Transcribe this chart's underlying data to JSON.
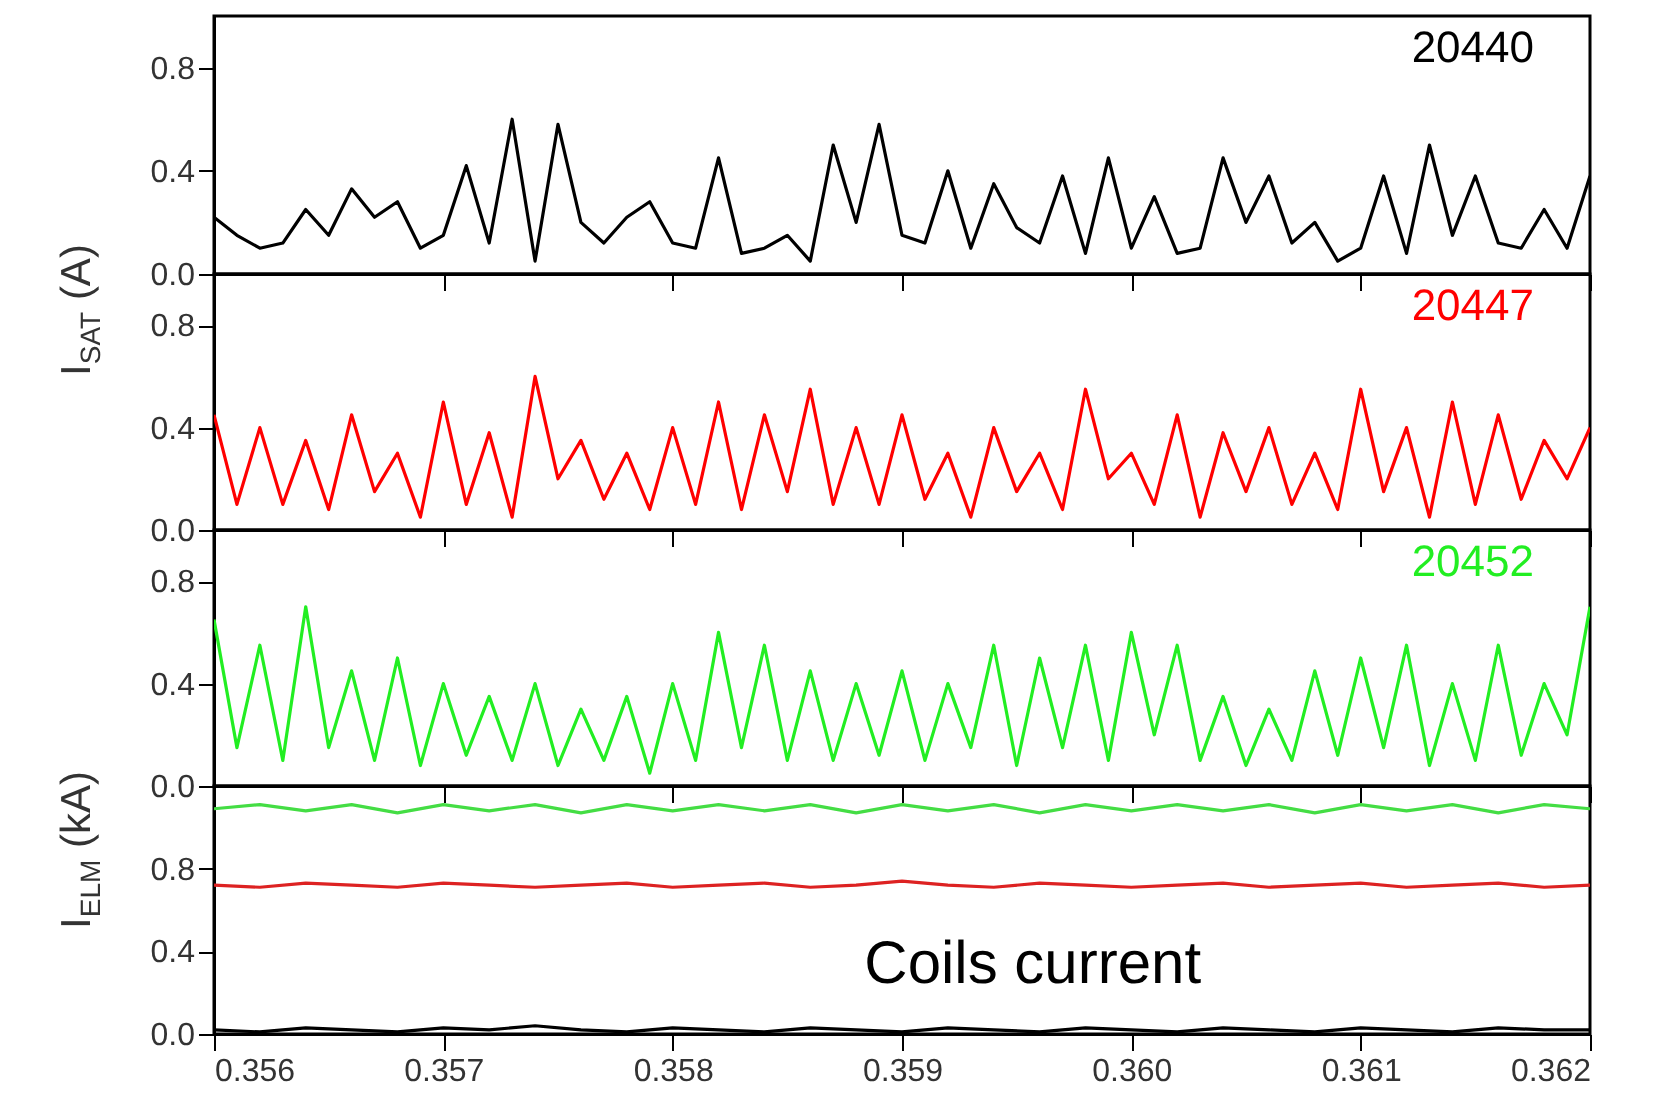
{
  "chart_data": [
    {
      "type": "line",
      "x": [
        0.356,
        0.3561,
        0.3562,
        0.3563,
        0.3564,
        0.3565,
        0.3566,
        0.3567,
        0.3568,
        0.3569,
        0.357,
        0.3571,
        0.3572,
        0.3573,
        0.3574,
        0.3575,
        0.3576,
        0.3577,
        0.3578,
        0.3579,
        0.358,
        0.3581,
        0.3582,
        0.3583,
        0.3584,
        0.3585,
        0.3586,
        0.3587,
        0.3588,
        0.3589,
        0.359,
        0.3591,
        0.3592,
        0.3593,
        0.3594,
        0.3595,
        0.3596,
        0.3597,
        0.3598,
        0.3599,
        0.36,
        0.3601,
        0.3602,
        0.3603,
        0.3604,
        0.3605,
        0.3606,
        0.3607,
        0.3608,
        0.3609,
        0.361,
        0.3611,
        0.3612,
        0.3613,
        0.3614,
        0.3615,
        0.3616,
        0.3617,
        0.3618,
        0.3619,
        0.362
      ],
      "xlim": [
        0.356,
        0.362
      ],
      "xticks": [
        {
          "value": 0.356,
          "label": null
        },
        {
          "value": 0.357,
          "label": null
        },
        {
          "value": 0.358,
          "label": null
        },
        {
          "value": 0.359,
          "label": null
        },
        {
          "value": 0.36,
          "label": null
        },
        {
          "value": 0.361,
          "label": null
        },
        {
          "value": 0.362,
          "label": null
        }
      ],
      "ylim": [
        0,
        1.0
      ],
      "yticks": [
        {
          "value": 0,
          "label": "0.0"
        },
        {
          "value": 0.4,
          "label": "0.4"
        },
        {
          "value": 0.8,
          "label": "0.8"
        }
      ],
      "tick_labels": "y",
      "series": [
        {
          "name": "20440",
          "color": "#000000",
          "values": [
            0.22,
            0.15,
            0.1,
            0.12,
            0.25,
            0.15,
            0.33,
            0.22,
            0.28,
            0.1,
            0.15,
            0.42,
            0.12,
            0.6,
            0.05,
            0.58,
            0.2,
            0.12,
            0.22,
            0.28,
            0.12,
            0.1,
            0.45,
            0.08,
            0.1,
            0.15,
            0.05,
            0.5,
            0.2,
            0.58,
            0.15,
            0.12,
            0.4,
            0.1,
            0.35,
            0.18,
            0.12,
            0.38,
            0.08,
            0.45,
            0.1,
            0.3,
            0.08,
            0.1,
            0.45,
            0.2,
            0.38,
            0.12,
            0.2,
            0.05,
            0.1,
            0.38,
            0.08,
            0.5,
            0.15,
            0.38,
            0.12,
            0.1,
            0.25,
            0.1,
            0.38
          ]
        }
      ]
    },
    {
      "type": "line",
      "x": [
        0.356,
        0.3561,
        0.3562,
        0.3563,
        0.3564,
        0.3565,
        0.3566,
        0.3567,
        0.3568,
        0.3569,
        0.357,
        0.3571,
        0.3572,
        0.3573,
        0.3574,
        0.3575,
        0.3576,
        0.3577,
        0.3578,
        0.3579,
        0.358,
        0.3581,
        0.3582,
        0.3583,
        0.3584,
        0.3585,
        0.3586,
        0.3587,
        0.3588,
        0.3589,
        0.359,
        0.3591,
        0.3592,
        0.3593,
        0.3594,
        0.3595,
        0.3596,
        0.3597,
        0.3598,
        0.3599,
        0.36,
        0.3601,
        0.3602,
        0.3603,
        0.3604,
        0.3605,
        0.3606,
        0.3607,
        0.3608,
        0.3609,
        0.361,
        0.3611,
        0.3612,
        0.3613,
        0.3614,
        0.3615,
        0.3616,
        0.3617,
        0.3618,
        0.3619,
        0.362
      ],
      "xlim": [
        0.356,
        0.362
      ],
      "xticks": [
        {
          "value": 0.356,
          "label": null
        },
        {
          "value": 0.357,
          "label": null
        },
        {
          "value": 0.358,
          "label": null
        },
        {
          "value": 0.359,
          "label": null
        },
        {
          "value": 0.36,
          "label": null
        },
        {
          "value": 0.361,
          "label": null
        },
        {
          "value": 0.362,
          "label": null
        }
      ],
      "ylim": [
        0,
        1.0
      ],
      "yticks": [
        {
          "value": 0,
          "label": "0.0"
        },
        {
          "value": 0.4,
          "label": "0.4"
        },
        {
          "value": 0.8,
          "label": "0.8"
        }
      ],
      "tick_labels": "y",
      "ylabel": "I$_{SAT}$  (A)",
      "series": [
        {
          "name": "20447",
          "color": "#ff0000",
          "values": [
            0.45,
            0.1,
            0.4,
            0.1,
            0.35,
            0.08,
            0.45,
            0.15,
            0.3,
            0.05,
            0.5,
            0.1,
            0.38,
            0.05,
            0.6,
            0.2,
            0.35,
            0.12,
            0.3,
            0.08,
            0.4,
            0.1,
            0.5,
            0.08,
            0.45,
            0.15,
            0.55,
            0.1,
            0.4,
            0.1,
            0.45,
            0.12,
            0.3,
            0.05,
            0.4,
            0.15,
            0.3,
            0.08,
            0.55,
            0.2,
            0.3,
            0.1,
            0.45,
            0.05,
            0.38,
            0.15,
            0.4,
            0.1,
            0.3,
            0.08,
            0.55,
            0.15,
            0.4,
            0.05,
            0.5,
            0.1,
            0.45,
            0.12,
            0.35,
            0.2,
            0.4
          ]
        }
      ]
    },
    {
      "type": "line",
      "x": [
        0.356,
        0.3561,
        0.3562,
        0.3563,
        0.3564,
        0.3565,
        0.3566,
        0.3567,
        0.3568,
        0.3569,
        0.357,
        0.3571,
        0.3572,
        0.3573,
        0.3574,
        0.3575,
        0.3576,
        0.3577,
        0.3578,
        0.3579,
        0.358,
        0.3581,
        0.3582,
        0.3583,
        0.3584,
        0.3585,
        0.3586,
        0.3587,
        0.3588,
        0.3589,
        0.359,
        0.3591,
        0.3592,
        0.3593,
        0.3594,
        0.3595,
        0.3596,
        0.3597,
        0.3598,
        0.3599,
        0.36,
        0.3601,
        0.3602,
        0.3603,
        0.3604,
        0.3605,
        0.3606,
        0.3607,
        0.3608,
        0.3609,
        0.361,
        0.3611,
        0.3612,
        0.3613,
        0.3614,
        0.3615,
        0.3616,
        0.3617,
        0.3618,
        0.3619,
        0.362
      ],
      "xlim": [
        0.356,
        0.362
      ],
      "xticks": [
        {
          "value": 0.356,
          "label": null
        },
        {
          "value": 0.357,
          "label": null
        },
        {
          "value": 0.358,
          "label": null
        },
        {
          "value": 0.359,
          "label": null
        },
        {
          "value": 0.36,
          "label": null
        },
        {
          "value": 0.361,
          "label": null
        },
        {
          "value": 0.362,
          "label": null
        }
      ],
      "ylim": [
        0,
        1.0
      ],
      "yticks": [
        {
          "value": 0,
          "label": "0.0"
        },
        {
          "value": 0.4,
          "label": "0.4"
        },
        {
          "value": 0.8,
          "label": "0.8"
        }
      ],
      "tick_labels": "y",
      "series": [
        {
          "name": "20452",
          "color": "#22ee22",
          "values": [
            0.65,
            0.15,
            0.55,
            0.1,
            0.7,
            0.15,
            0.45,
            0.1,
            0.5,
            0.08,
            0.4,
            0.12,
            0.35,
            0.1,
            0.4,
            0.08,
            0.3,
            0.1,
            0.35,
            0.05,
            0.4,
            0.1,
            0.6,
            0.15,
            0.55,
            0.1,
            0.45,
            0.1,
            0.4,
            0.12,
            0.45,
            0.1,
            0.4,
            0.15,
            0.55,
            0.08,
            0.5,
            0.15,
            0.55,
            0.1,
            0.6,
            0.2,
            0.55,
            0.1,
            0.35,
            0.08,
            0.3,
            0.1,
            0.45,
            0.12,
            0.5,
            0.15,
            0.55,
            0.08,
            0.4,
            0.1,
            0.55,
            0.12,
            0.4,
            0.2,
            0.7
          ]
        }
      ]
    },
    {
      "type": "line",
      "x": [
        0.356,
        0.3562,
        0.3564,
        0.3566,
        0.3568,
        0.357,
        0.3572,
        0.3574,
        0.3576,
        0.3578,
        0.358,
        0.3582,
        0.3584,
        0.3586,
        0.3588,
        0.359,
        0.3592,
        0.3594,
        0.3596,
        0.3598,
        0.36,
        0.3602,
        0.3604,
        0.3606,
        0.3608,
        0.361,
        0.3612,
        0.3614,
        0.3616,
        0.3618,
        0.362
      ],
      "xlim": [
        0.356,
        0.362
      ],
      "xticks": [
        {
          "value": 0.356,
          "label": "0.356"
        },
        {
          "value": 0.357,
          "label": "0.357"
        },
        {
          "value": 0.358,
          "label": "0.358"
        },
        {
          "value": 0.359,
          "label": "0.359"
        },
        {
          "value": 0.36,
          "label": "0.360"
        },
        {
          "value": 0.361,
          "label": "0.361"
        },
        {
          "value": 0.362,
          "label": "0.362"
        }
      ],
      "ylim": [
        0,
        1.2
      ],
      "yticks": [
        {
          "value": 0,
          "label": "0.0"
        },
        {
          "value": 0.4,
          "label": "0.4"
        },
        {
          "value": 0.8,
          "label": "0.8"
        }
      ],
      "ylabel": "I$_{ELM}$  (kA)",
      "annotations": [
        "Coils current"
      ],
      "series": [
        {
          "color": "#44dd44",
          "values": [
            1.09,
            1.11,
            1.08,
            1.11,
            1.07,
            1.11,
            1.08,
            1.11,
            1.07,
            1.11,
            1.08,
            1.11,
            1.08,
            1.11,
            1.07,
            1.11,
            1.08,
            1.11,
            1.07,
            1.11,
            1.08,
            1.11,
            1.08,
            1.11,
            1.07,
            1.11,
            1.08,
            1.11,
            1.07,
            1.11,
            1.09
          ]
        },
        {
          "color": "#dd2222",
          "values": [
            0.72,
            0.71,
            0.73,
            0.72,
            0.71,
            0.73,
            0.72,
            0.71,
            0.72,
            0.73,
            0.71,
            0.72,
            0.73,
            0.71,
            0.72,
            0.74,
            0.72,
            0.71,
            0.73,
            0.72,
            0.71,
            0.72,
            0.73,
            0.71,
            0.72,
            0.73,
            0.71,
            0.72,
            0.73,
            0.71,
            0.72
          ]
        },
        {
          "color": "#000000",
          "values": [
            0.02,
            0.01,
            0.03,
            0.02,
            0.01,
            0.03,
            0.02,
            0.04,
            0.02,
            0.01,
            0.03,
            0.02,
            0.01,
            0.03,
            0.02,
            0.01,
            0.03,
            0.02,
            0.01,
            0.03,
            0.02,
            0.01,
            0.03,
            0.02,
            0.01,
            0.03,
            0.02,
            0.01,
            0.03,
            0.02,
            0.02
          ]
        }
      ]
    }
  ]
}
